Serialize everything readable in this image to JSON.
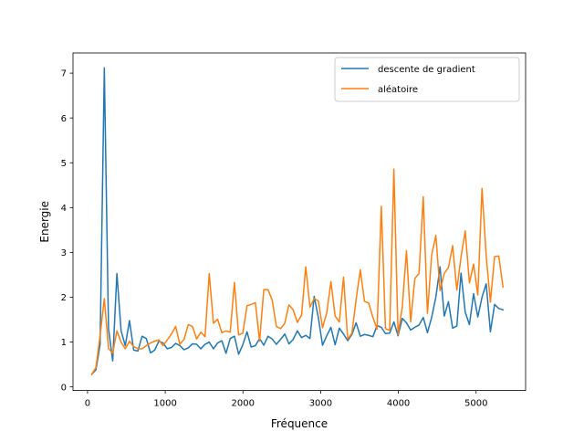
{
  "chart_data": {
    "type": "line",
    "title": "",
    "xlabel": "Fréquence",
    "ylabel": "Energie",
    "xlim": [
      -187,
      5637
    ],
    "ylim": [
      -0.08,
      7.45
    ],
    "xticks": [
      0,
      1000,
      2000,
      3000,
      4000,
      5000
    ],
    "yticks": [
      0,
      1,
      2,
      3,
      4,
      5,
      6,
      7
    ],
    "grid": false,
    "legend_position": "top-right",
    "series": [
      {
        "name": "descente de gradient",
        "color": "#1f77b4",
        "x": [
          54,
          108,
          162,
          216,
          270,
          324,
          378,
          432,
          486,
          540,
          594,
          648,
          702,
          756,
          810,
          864,
          918,
          972,
          1026,
          1080,
          1134,
          1188,
          1242,
          1296,
          1350,
          1404,
          1458,
          1512,
          1566,
          1620,
          1674,
          1728,
          1782,
          1836,
          1890,
          1944,
          1998,
          2052,
          2106,
          2160,
          2214,
          2268,
          2322,
          2376,
          2430,
          2484,
          2538,
          2592,
          2646,
          2700,
          2754,
          2808,
          2862,
          2916,
          2970,
          3024,
          3078,
          3132,
          3186,
          3240,
          3294,
          3348,
          3402,
          3456,
          3510,
          3564,
          3618,
          3672,
          3726,
          3780,
          3834,
          3888,
          3942,
          3996,
          4050,
          4104,
          4158,
          4212,
          4266,
          4320,
          4374,
          4428,
          4482,
          4536,
          4590,
          4644,
          4698,
          4752,
          4806,
          4860,
          4914,
          4968,
          5022,
          5076,
          5130,
          5184,
          5238,
          5292,
          5346
        ],
        "values": [
          0.28,
          0.38,
          0.95,
          7.12,
          1.3,
          0.58,
          2.53,
          1.25,
          0.92,
          1.48,
          0.82,
          0.8,
          1.13,
          1.08,
          0.76,
          0.82,
          1.02,
          0.98,
          0.85,
          0.88,
          0.97,
          0.92,
          0.83,
          0.87,
          0.96,
          0.95,
          0.85,
          0.95,
          1.0,
          0.85,
          0.98,
          1.03,
          0.75,
          1.08,
          1.13,
          0.73,
          0.94,
          1.23,
          0.89,
          0.92,
          1.08,
          0.93,
          1.13,
          1.07,
          0.95,
          1.06,
          1.18,
          0.96,
          1.06,
          1.25,
          1.1,
          1.15,
          1.08,
          2.02,
          1.55,
          0.93,
          1.14,
          1.33,
          0.94,
          1.31,
          1.18,
          1.03,
          1.17,
          1.43,
          1.13,
          1.17,
          1.15,
          1.12,
          1.37,
          1.33,
          1.19,
          1.2,
          1.45,
          1.14,
          1.53,
          1.43,
          1.27,
          1.33,
          1.38,
          1.55,
          1.21,
          1.55,
          2.0,
          2.68,
          1.58,
          1.9,
          1.31,
          1.36,
          2.54,
          1.67,
          1.39,
          2.08,
          1.56,
          2.0,
          2.3,
          1.23,
          1.84,
          1.75,
          1.72
        ]
      },
      {
        "name": "aléatoire",
        "color": "#ff7f0e",
        "x": [
          54,
          108,
          162,
          216,
          270,
          324,
          378,
          432,
          486,
          540,
          594,
          648,
          702,
          756,
          810,
          864,
          918,
          972,
          1026,
          1080,
          1134,
          1188,
          1242,
          1296,
          1350,
          1404,
          1458,
          1512,
          1566,
          1620,
          1674,
          1728,
          1782,
          1836,
          1890,
          1944,
          1998,
          2052,
          2106,
          2160,
          2214,
          2268,
          2322,
          2376,
          2430,
          2484,
          2538,
          2592,
          2646,
          2700,
          2754,
          2808,
          2862,
          2916,
          2970,
          3024,
          3078,
          3132,
          3186,
          3240,
          3294,
          3348,
          3402,
          3456,
          3510,
          3564,
          3618,
          3672,
          3726,
          3780,
          3834,
          3888,
          3942,
          3996,
          4050,
          4104,
          4158,
          4212,
          4266,
          4320,
          4374,
          4428,
          4482,
          4536,
          4590,
          4644,
          4698,
          4752,
          4806,
          4860,
          4914,
          4968,
          5022,
          5076,
          5130,
          5184,
          5238,
          5292,
          5346
        ],
        "values": [
          0.28,
          0.43,
          1.15,
          1.97,
          0.86,
          0.75,
          1.25,
          1.0,
          0.85,
          1.02,
          0.9,
          0.85,
          0.85,
          0.92,
          0.98,
          1.02,
          1.05,
          0.92,
          1.05,
          1.18,
          1.35,
          0.95,
          1.06,
          1.39,
          1.35,
          1.07,
          1.22,
          1.12,
          2.53,
          1.42,
          1.51,
          1.21,
          1.25,
          1.22,
          2.33,
          1.16,
          1.2,
          1.81,
          1.84,
          1.88,
          1.02,
          2.17,
          2.17,
          1.94,
          1.35,
          1.3,
          1.42,
          1.83,
          1.72,
          1.44,
          1.6,
          2.68,
          1.78,
          1.97,
          1.92,
          1.32,
          1.65,
          2.35,
          1.58,
          1.45,
          2.45,
          1.07,
          1.2,
          1.95,
          2.61,
          1.91,
          1.87,
          1.55,
          1.29,
          4.03,
          1.3,
          1.26,
          4.86,
          1.17,
          1.78,
          3.04,
          1.45,
          2.42,
          2.53,
          4.24,
          1.64,
          2.94,
          3.38,
          2.15,
          2.53,
          2.66,
          3.15,
          2.16,
          2.9,
          3.48,
          2.32,
          2.74,
          2.05,
          4.43,
          2.92,
          1.89,
          2.91,
          2.92,
          2.23
        ]
      }
    ]
  }
}
